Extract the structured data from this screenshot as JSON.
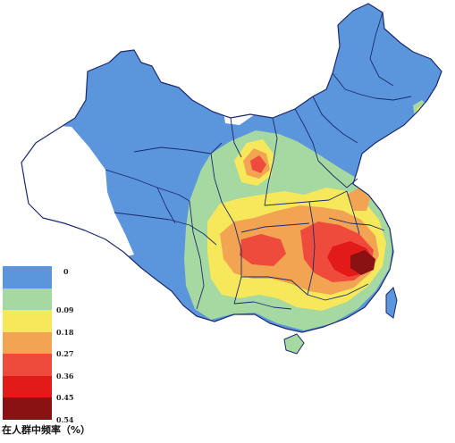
{
  "legend": {
    "title": "在人群中频率（%）",
    "items": [
      {
        "label": "0",
        "color": "#5b95dc"
      },
      {
        "label": "0.09",
        "color": "#a5d9a1"
      },
      {
        "label": "0.18",
        "color": "#f6e85a"
      },
      {
        "label": "0.27",
        "color": "#f3a452"
      },
      {
        "label": "0.36",
        "color": "#ee4b3c"
      },
      {
        "label": "0.45",
        "color": "#e31a1a"
      },
      {
        "label": "0.54",
        "color": "#8a1212"
      }
    ]
  },
  "map": {
    "no_data_color": "#ffffff",
    "border_color": "#1c2a6e"
  }
}
